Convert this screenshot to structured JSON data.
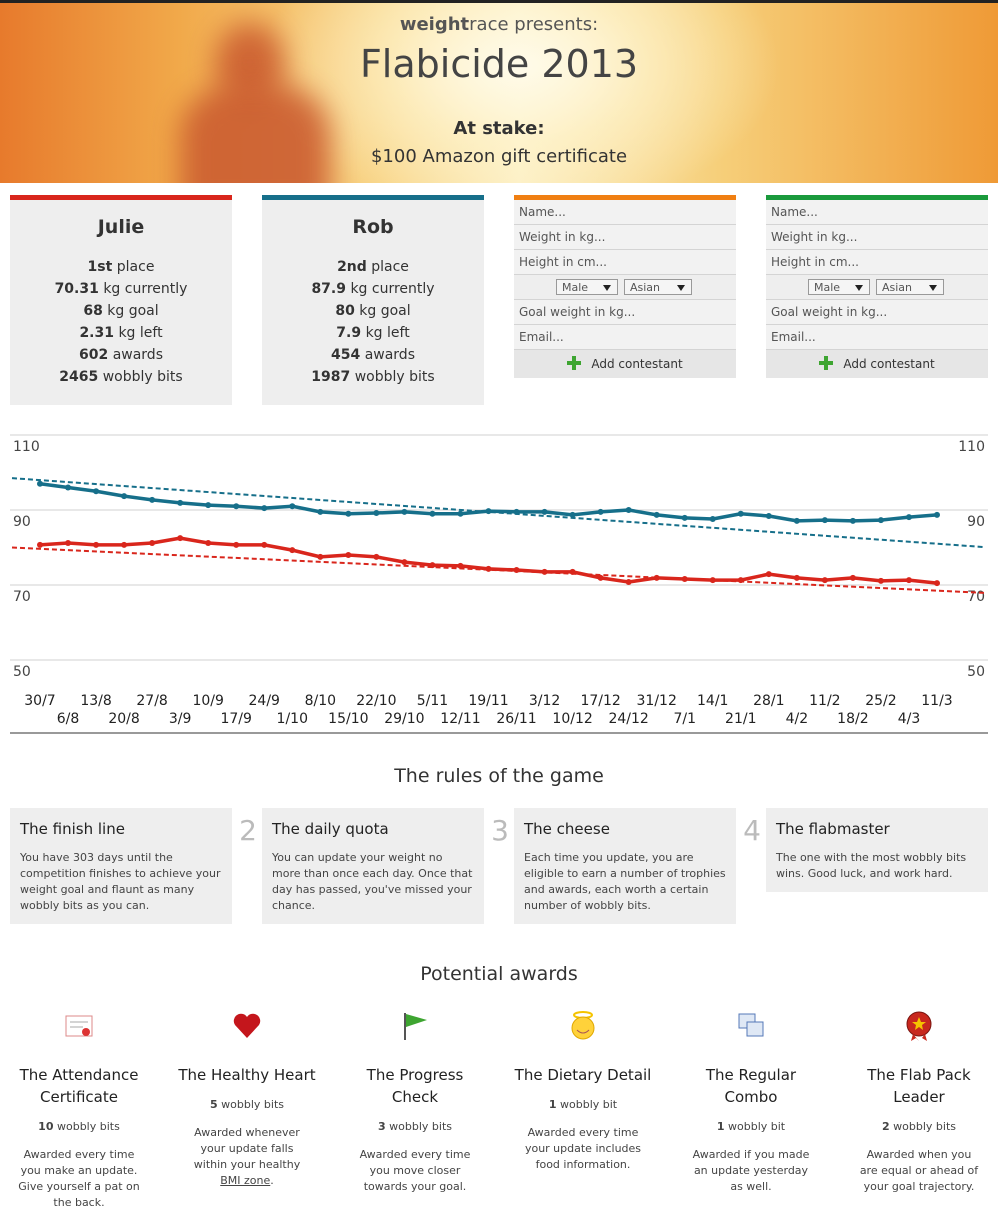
{
  "header": {
    "brand_bold": "weight",
    "brand": "race",
    "presents": "presents:",
    "title": "Flabicide 2013",
    "stake_label": "At stake:",
    "stake": "$100 Amazon gift certificate"
  },
  "contestants": [
    {
      "name": "Julie",
      "color": "#d9261c",
      "stats": [
        {
          "value": "1st",
          "label": "place"
        },
        {
          "value": "70.31",
          "label": "kg currently"
        },
        {
          "value": "68",
          "label": "kg goal"
        },
        {
          "value": "2.31",
          "label": "kg left"
        },
        {
          "value": "602",
          "label": "awards"
        },
        {
          "value": "2465",
          "label": "wobbly bits"
        }
      ]
    },
    {
      "name": "Rob",
      "color": "#166f8a",
      "stats": [
        {
          "value": "2nd",
          "label": "place"
        },
        {
          "value": "87.9",
          "label": "kg currently"
        },
        {
          "value": "80",
          "label": "kg goal"
        },
        {
          "value": "7.9",
          "label": "kg left"
        },
        {
          "value": "454",
          "label": "awards"
        },
        {
          "value": "1987",
          "label": "wobbly bits"
        }
      ]
    }
  ],
  "forms": [
    {
      "color": "#f07f12",
      "fields": [
        "Name...",
        "Weight in kg...",
        "Height in cm..."
      ],
      "sex": "Male",
      "ethnicity": "Asian",
      "fields2": [
        "Goal weight in kg...",
        "Email..."
      ],
      "button": "Add contestant"
    },
    {
      "color": "#1a9a3c",
      "fields": [
        "Name...",
        "Weight in kg...",
        "Height in cm..."
      ],
      "sex": "Male",
      "ethnicity": "Asian",
      "fields2": [
        "Goal weight in kg...",
        "Email..."
      ],
      "button": "Add contestant"
    }
  ],
  "chart_data": {
    "type": "line",
    "categories": [
      "30/7",
      "6/8",
      "13/8",
      "20/8",
      "27/8",
      "3/9",
      "10/9",
      "17/9",
      "24/9",
      "1/10",
      "8/10",
      "15/10",
      "22/10",
      "29/10",
      "5/11",
      "12/11",
      "19/11",
      "26/11",
      "3/12",
      "10/12",
      "17/12",
      "24/12",
      "31/12",
      "7/1",
      "14/1",
      "21/1",
      "28/1",
      "4/2",
      "11/2",
      "18/2",
      "25/2",
      "4/3",
      "11/3"
    ],
    "series": [
      {
        "color": "#166f8a",
        "values": [
          97,
          96,
          95,
          93.7,
          92.7,
          91.9,
          91.3,
          91,
          90.5,
          91,
          89.5,
          89,
          89.2,
          89.5,
          89,
          89,
          89.7,
          89.5,
          89.5,
          88.7,
          89.5,
          90,
          88.7,
          87.9,
          87.6,
          89,
          88.4,
          87.1,
          87.3,
          87.1,
          87.3,
          88.1,
          88.7
        ],
        "trend": [
          98.5,
          80.1
        ]
      },
      {
        "color": "#d9261c",
        "values": [
          80.7,
          81.2,
          80.7,
          80.7,
          81.2,
          82.5,
          81.2,
          80.7,
          80.7,
          79.3,
          77.5,
          78,
          77.5,
          76.1,
          75.3,
          75.1,
          74.3,
          74,
          73.5,
          73.5,
          71.9,
          70.8,
          71.9,
          71.6,
          71.3,
          71.3,
          72.9,
          71.9,
          71.3,
          71.9,
          71.1,
          71.3,
          70.5
        ],
        "trend": [
          80,
          67.9
        ]
      }
    ],
    "ylim": [
      50,
      110
    ],
    "yticks": [
      50,
      70,
      90,
      110
    ],
    "grid": true
  },
  "rules": {
    "title": "The rules of the game",
    "items": [
      {
        "title": "The finish line",
        "text": "You have 303 days until the competition finishes to achieve your weight goal and flaunt as many wobbly bits as you can."
      },
      {
        "number": "2",
        "title": "The daily quota",
        "text": "You can update your weight no more than once each day. Once that day has passed, you've missed your chance."
      },
      {
        "number": "3",
        "title": "The cheese",
        "text": "Each time you update, you are eligible to earn a number of trophies and awards, each worth a certain number of wobbly bits."
      },
      {
        "number": "4",
        "title": "The flabmaster",
        "text": "The one with the most wobbly bits wins. Good luck, and work hard."
      }
    ]
  },
  "awards": {
    "title": "Potential awards",
    "items": [
      {
        "name": "The Attendance Certificate",
        "points": "10",
        "unit": "wobbly bits",
        "text": "Awarded every time you make an update. Give yourself a pat on the back."
      },
      {
        "name": "The Healthy Heart",
        "points": "5",
        "unit": "wobbly bits",
        "text": "Awarded whenever your update falls within your healthy",
        "link": "BMI zone",
        "after": "."
      },
      {
        "name": "The Progress Check",
        "points": "3",
        "unit": "wobbly bits",
        "text": "Awarded every time you move closer towards your goal."
      },
      {
        "name": "The Dietary Detail",
        "points": "1",
        "unit": "wobbly bit",
        "text": "Awarded every time your update includes food information."
      },
      {
        "name": "The Regular Combo",
        "points": "1",
        "unit": "wobbly bit",
        "text": "Awarded if you made an update yesterday as well."
      },
      {
        "name": "The Flab Pack Leader",
        "points": "2",
        "unit": "wobbly bits",
        "text": "Awarded when you are equal or ahead of your goal trajectory."
      }
    ]
  }
}
